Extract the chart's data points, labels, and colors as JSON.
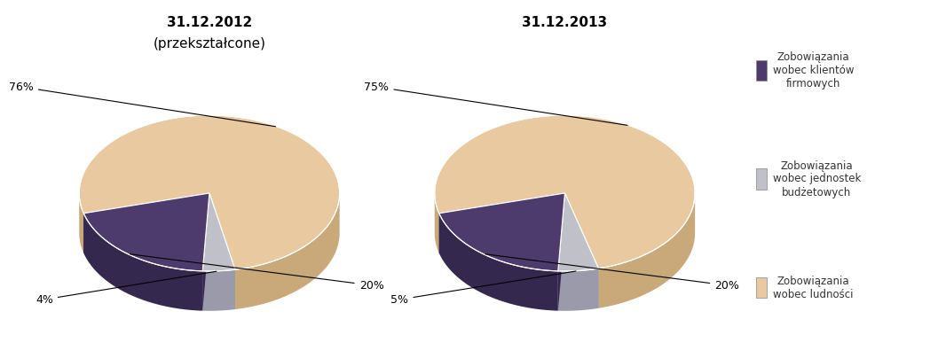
{
  "chart1_title": "31.12.2012",
  "chart1_subtitle": "(przekształcone)",
  "chart2_title": "31.12.2013",
  "slices1": [
    76,
    4,
    20
  ],
  "slices2": [
    75,
    5,
    20
  ],
  "labels1": [
    "76%",
    "4%",
    "20%"
  ],
  "labels2": [
    "75%",
    "5%",
    "20%"
  ],
  "colors_top": [
    "#e8c9a0",
    "#c0c0c8",
    "#4e3b6e"
  ],
  "colors_side": [
    "#c9a87a",
    "#9a9aaa",
    "#35284f"
  ],
  "background_color": "#ffffff",
  "title_fontsize": 11,
  "label_fontsize": 9,
  "legend_fontsize": 8.5,
  "legend_labels": [
    "Zobowiązania\nwobec klientów\nfirmowych",
    "Zobowiązania\nwobec jednostek\nbudżetowych",
    "Zobowiązania\nwobec ludności"
  ],
  "legend_colors": [
    "#4e3b6e",
    "#c0c0c8",
    "#e8c9a0"
  ]
}
